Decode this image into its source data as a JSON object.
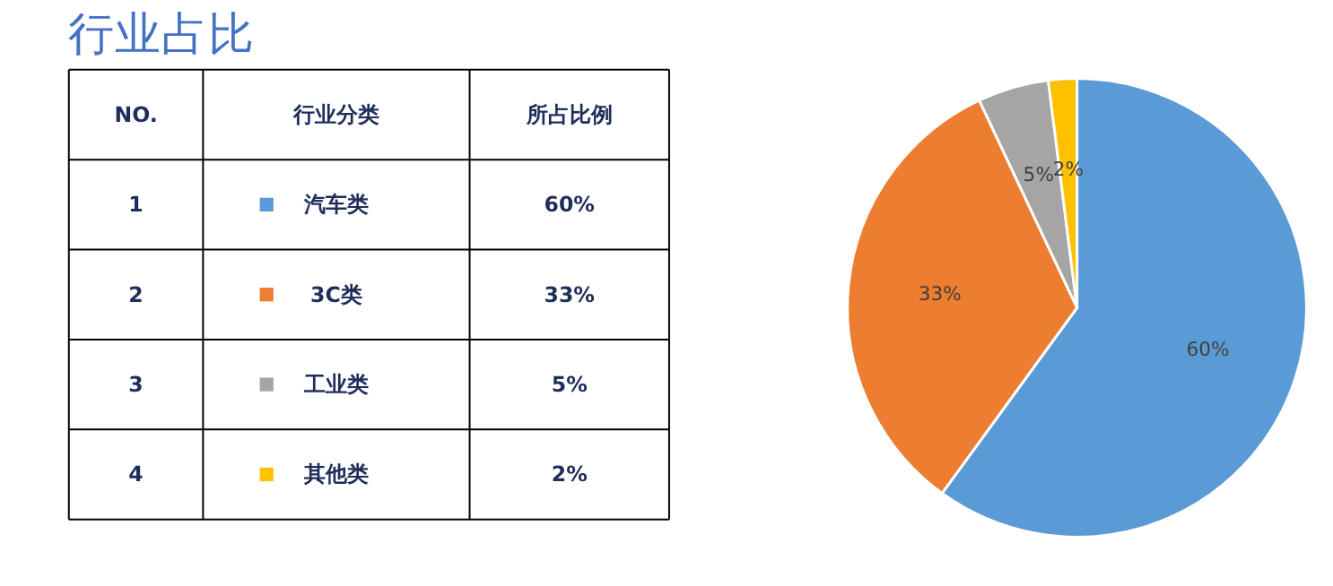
{
  "chart_data": {
    "type": "pie",
    "title": "行业占比",
    "categories": [
      "汽车类",
      "3C类",
      "工业类",
      "其他类"
    ],
    "values": [
      60,
      33,
      5,
      2
    ],
    "value_labels": [
      "60%",
      "33%",
      "5%",
      "2%"
    ],
    "colors": [
      "#5b9bd5",
      "#ed7d31",
      "#a5a5a5",
      "#ffc000"
    ],
    "annotations": [
      "NO.",
      "行业分类",
      "所占比例",
      "1",
      "2",
      "3",
      "4"
    ],
    "legend": "left"
  }
}
